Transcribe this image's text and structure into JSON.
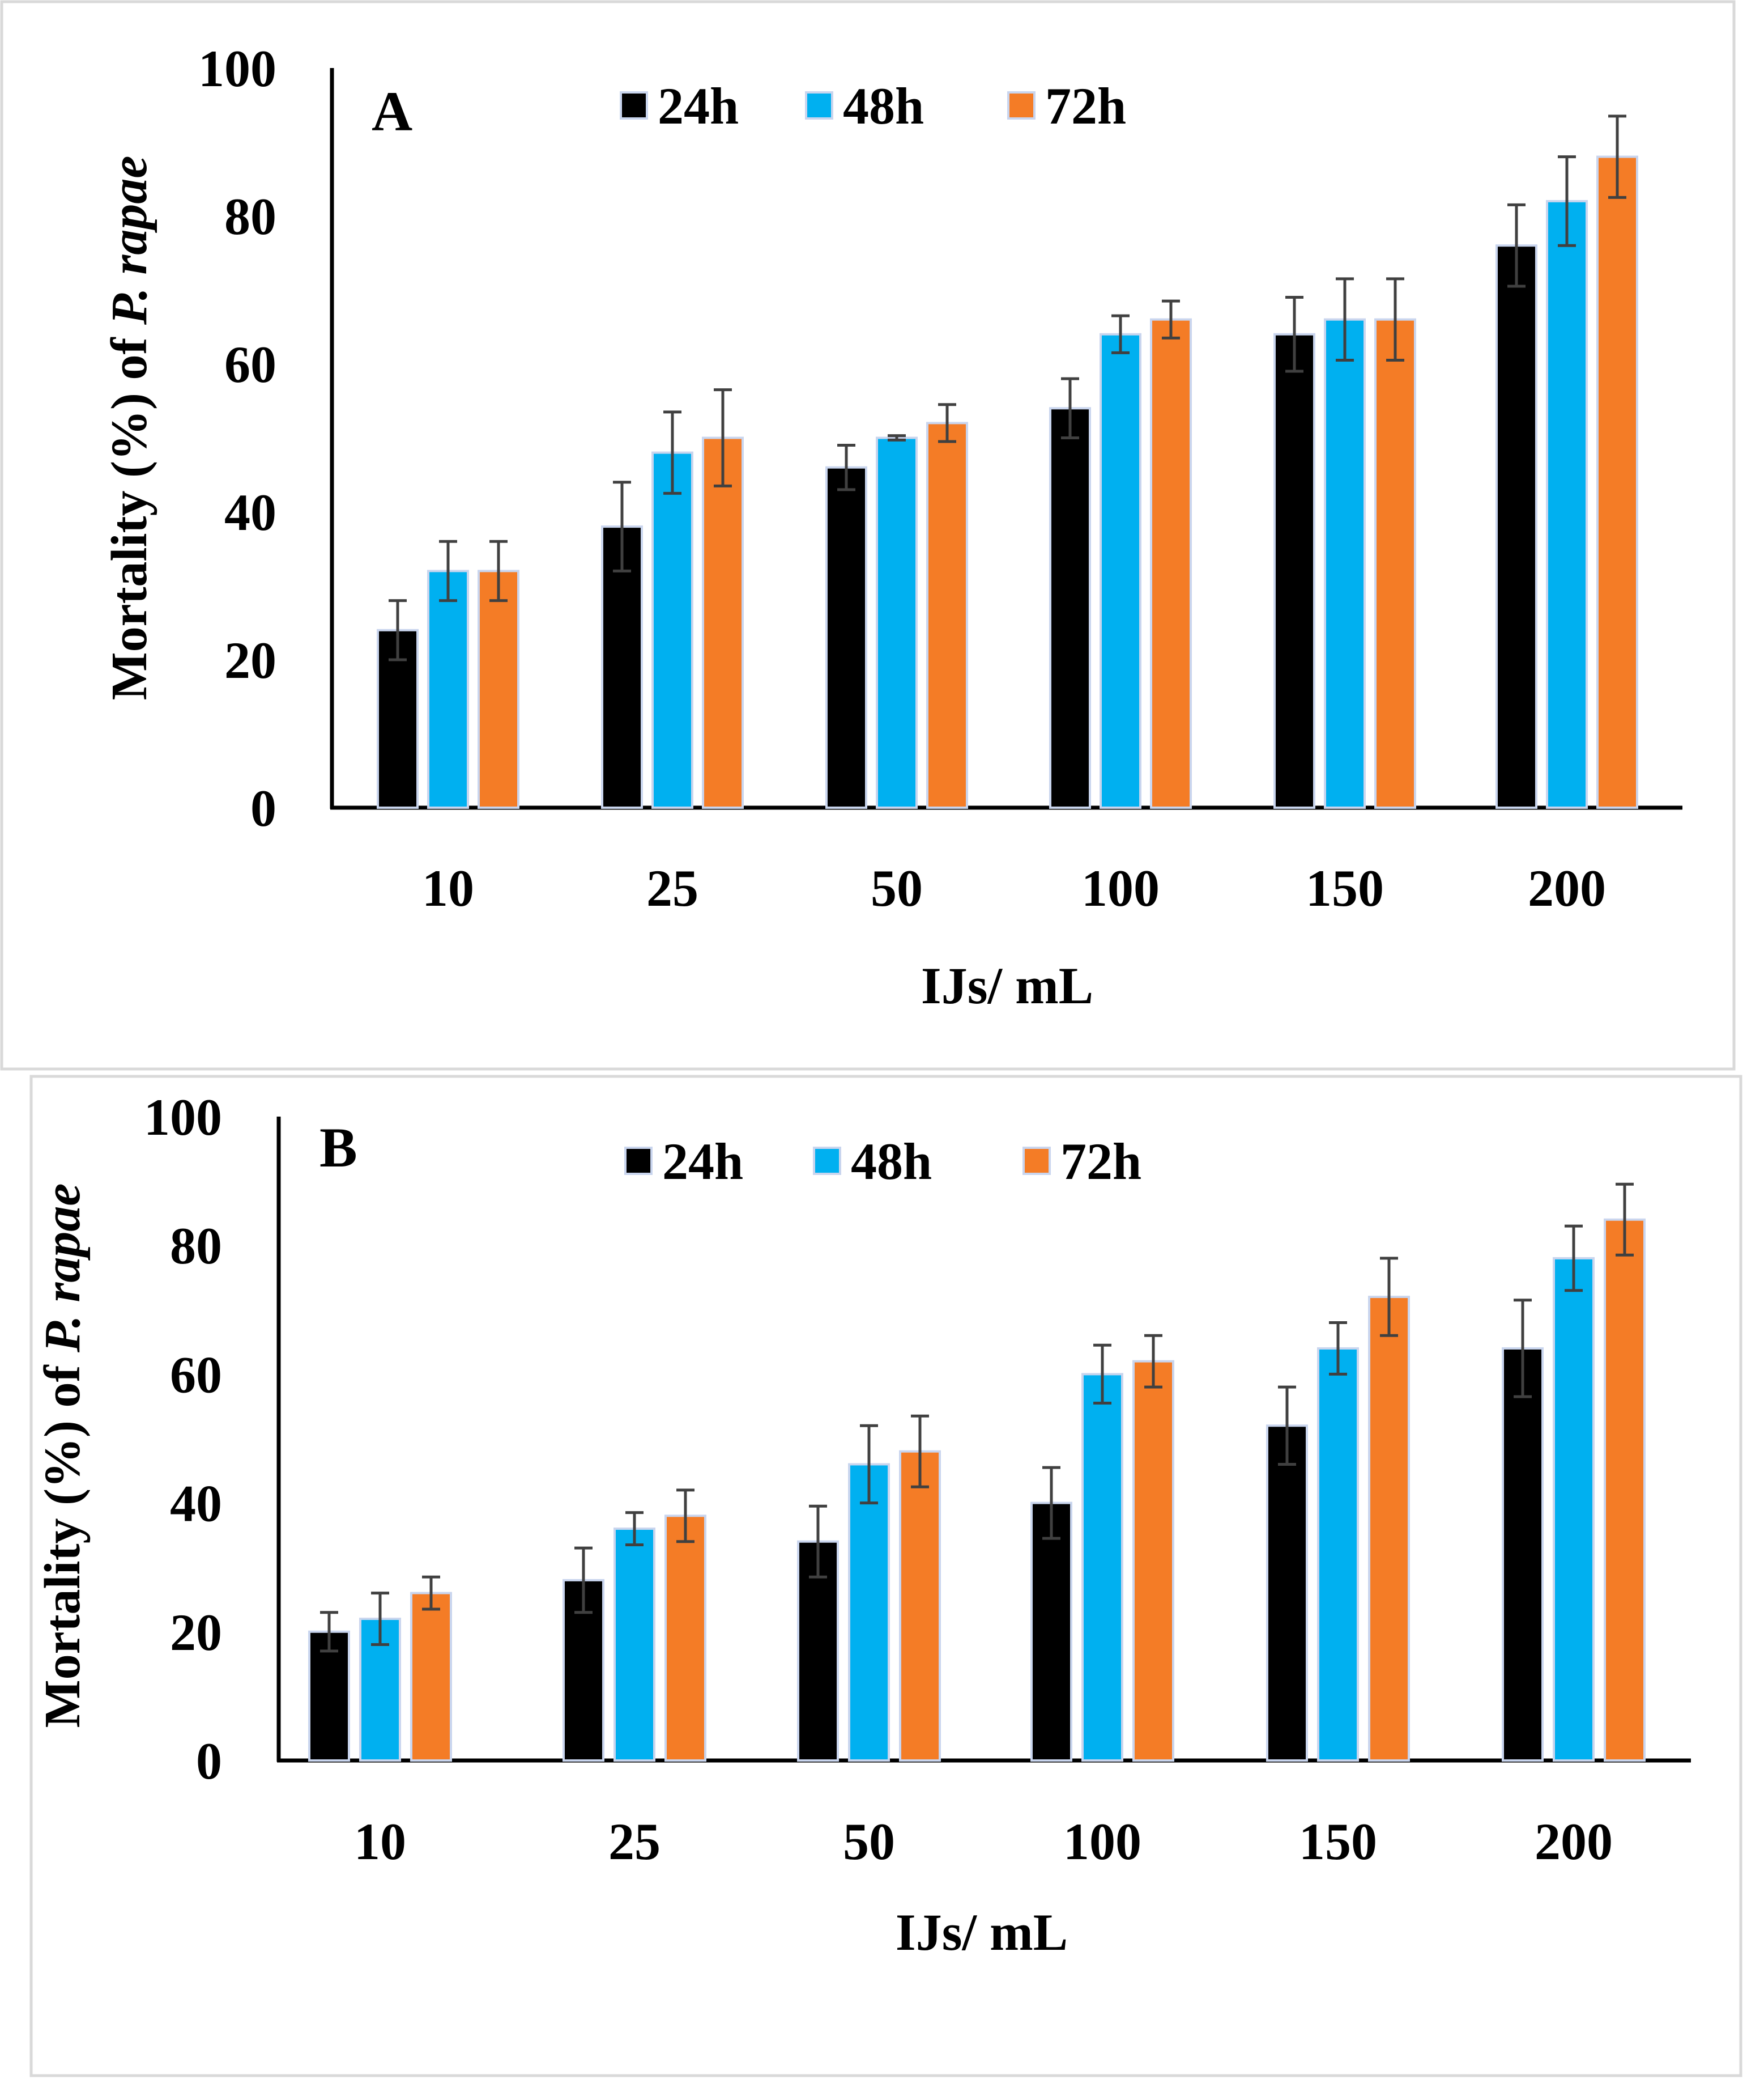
{
  "figure": {
    "x_title": "IJs/ mL",
    "y_title_prefix": "Mortality (%) of ",
    "y_title_italic": "P. rapae"
  },
  "colors": {
    "24h": "#000000",
    "48h": "#00B0F0",
    "72h": "#F47C26",
    "bar_outline": "#C9D5EE",
    "error_bar": "#404040",
    "panel_border": "#D9D9D9"
  },
  "chart_data": [
    {
      "type": "bar",
      "panel_label": "A",
      "categories": [
        "10",
        "25",
        "50",
        "100",
        "150",
        "200"
      ],
      "xlabel": "IJs/ mL",
      "ylabel": "Mortality (%) of P. rapae",
      "ylim": [
        0,
        100
      ],
      "yticks": [
        0,
        20,
        40,
        60,
        80,
        100
      ],
      "legend_position": "top-center",
      "series": [
        {
          "name": "24h",
          "values": [
            24,
            38,
            46,
            54,
            64,
            76
          ],
          "errors": [
            4,
            6,
            3,
            4,
            5,
            5.5
          ]
        },
        {
          "name": "48h",
          "values": [
            32,
            48,
            50,
            64,
            66,
            82
          ],
          "errors": [
            4,
            5.5,
            0.3,
            2.5,
            5.5,
            6
          ]
        },
        {
          "name": "72h",
          "values": [
            32,
            50,
            52,
            66,
            66,
            88
          ],
          "errors": [
            4,
            6.5,
            2.5,
            2.5,
            5.5,
            5.5
          ]
        }
      ]
    },
    {
      "type": "bar",
      "panel_label": "B",
      "categories": [
        "10",
        "25",
        "50",
        "100",
        "150",
        "200"
      ],
      "xlabel": "IJs/ mL",
      "ylabel": "Mortality (%) of P. rapae",
      "ylim": [
        0,
        100
      ],
      "yticks": [
        0,
        20,
        40,
        60,
        80,
        100
      ],
      "legend_position": "top-center",
      "series": [
        {
          "name": "24h",
          "values": [
            20,
            28,
            34,
            40,
            52,
            64
          ],
          "errors": [
            3,
            5,
            5.5,
            5.5,
            6,
            7.5
          ]
        },
        {
          "name": "48h",
          "values": [
            22,
            36,
            46,
            60,
            64,
            78
          ],
          "errors": [
            4,
            2.5,
            6,
            4.5,
            4,
            5
          ]
        },
        {
          "name": "72h",
          "values": [
            26,
            38,
            48,
            62,
            72,
            84
          ],
          "errors": [
            2.5,
            4,
            5.5,
            4,
            6,
            5.5
          ]
        }
      ]
    }
  ]
}
